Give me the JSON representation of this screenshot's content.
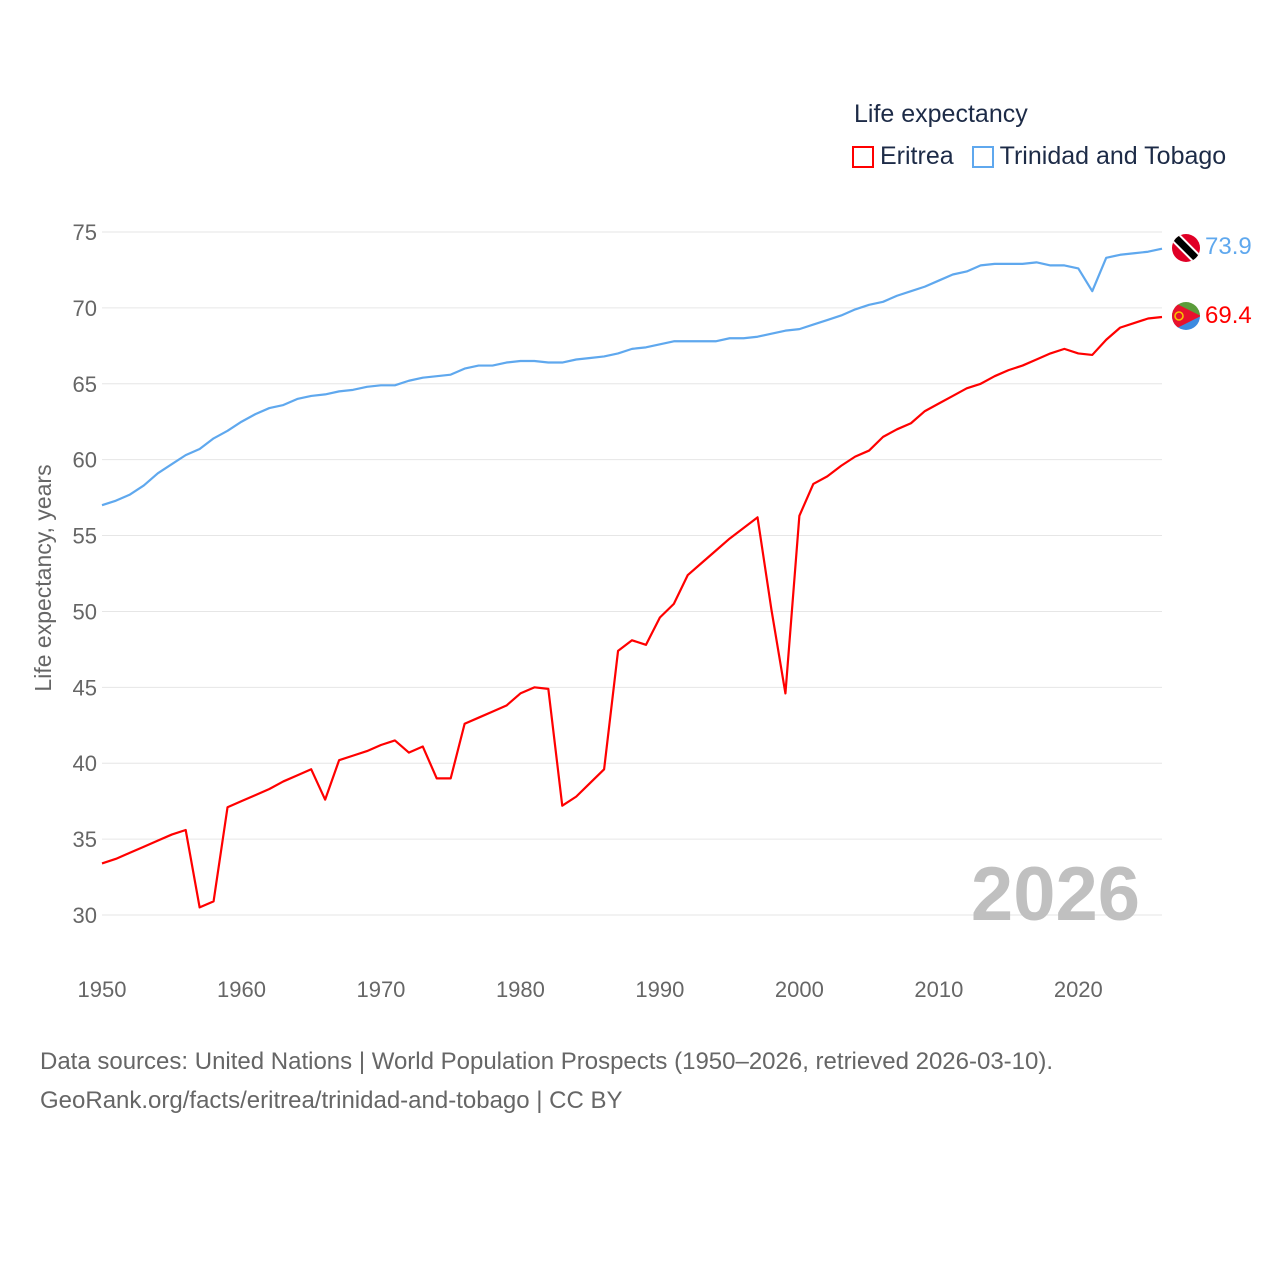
{
  "chart_data": {
    "type": "line",
    "title": "Life expectancy",
    "xlabel": "",
    "ylabel": "Life expectancy, years",
    "xlim": [
      1950,
      2026
    ],
    "ylim": [
      27,
      76
    ],
    "yticks": [
      30,
      35,
      40,
      45,
      50,
      55,
      60,
      65,
      70,
      75
    ],
    "xticks": [
      1950,
      1960,
      1970,
      1980,
      1990,
      2000,
      2010,
      2020
    ],
    "grid": true,
    "legend_position": "top-right",
    "year_watermark": "2026",
    "x_start": 1950,
    "series": [
      {
        "name": "Eritrea",
        "color": "#ff0000",
        "end_label": "69.4",
        "flag": "eritrea-flag",
        "values": [
          33.4,
          33.7,
          34.1,
          34.5,
          34.9,
          35.3,
          35.6,
          30.5,
          30.9,
          37.1,
          37.5,
          37.9,
          38.3,
          38.8,
          39.2,
          39.6,
          37.6,
          40.2,
          40.5,
          40.8,
          41.2,
          41.5,
          40.7,
          41.1,
          39.0,
          39.0,
          42.6,
          43.0,
          43.4,
          43.8,
          44.6,
          45.0,
          44.9,
          37.2,
          37.8,
          38.7,
          39.6,
          47.4,
          48.1,
          47.8,
          49.6,
          50.5,
          52.4,
          53.2,
          54.0,
          54.8,
          55.5,
          56.2,
          50.1,
          44.6,
          56.3,
          58.4,
          58.9,
          59.6,
          60.2,
          60.6,
          61.5,
          62.0,
          62.4,
          63.2,
          63.7,
          64.2,
          64.7,
          65.0,
          65.5,
          65.9,
          66.2,
          66.6,
          67.0,
          67.3,
          67.0,
          66.9,
          67.9,
          68.7,
          69.0,
          69.3,
          69.4
        ]
      },
      {
        "name": "Trinidad and Tobago",
        "color": "#5fa8ee",
        "end_label": "73.9",
        "flag": "trinidad-flag",
        "values": [
          57.0,
          57.3,
          57.7,
          58.3,
          59.1,
          59.7,
          60.3,
          60.7,
          61.4,
          61.9,
          62.5,
          63.0,
          63.4,
          63.6,
          64.0,
          64.2,
          64.3,
          64.5,
          64.6,
          64.8,
          64.9,
          64.9,
          65.2,
          65.4,
          65.5,
          65.6,
          66.0,
          66.2,
          66.2,
          66.4,
          66.5,
          66.5,
          66.4,
          66.4,
          66.6,
          66.7,
          66.8,
          67.0,
          67.3,
          67.4,
          67.6,
          67.8,
          67.8,
          67.8,
          67.8,
          68.0,
          68.0,
          68.1,
          68.3,
          68.5,
          68.6,
          68.9,
          69.2,
          69.5,
          69.9,
          70.2,
          70.4,
          70.8,
          71.1,
          71.4,
          71.8,
          72.2,
          72.4,
          72.8,
          72.9,
          72.9,
          72.9,
          73.0,
          72.8,
          72.8,
          72.6,
          71.1,
          73.3,
          73.5,
          73.6,
          73.7,
          73.9
        ]
      }
    ]
  },
  "footer": {
    "line1": "Data sources: United Nations | World Population Prospects (1950–2026, retrieved 2026-03-10).",
    "line2": "GeoRank.org/facts/eritrea/trinidad-and-tobago | CC BY"
  }
}
